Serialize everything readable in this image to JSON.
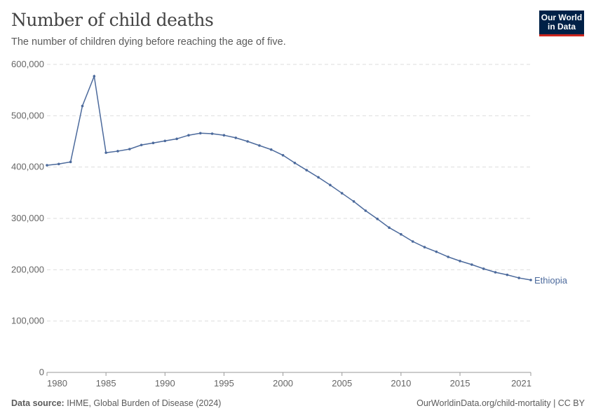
{
  "header": {
    "title": "Number of child deaths",
    "subtitle": "The number of children dying before reaching the age of five.",
    "logo_text": "Our World in Data"
  },
  "footer": {
    "source_label": "Data source:",
    "source": "IHME, Global Burden of Disease (2024)",
    "link": "OurWorldinData.org/child-mortality | CC BY"
  },
  "colors": {
    "series": "#4c6a9c",
    "grid": "#dddddd",
    "logo_bg": "#002147",
    "logo_bar": "#ce261e"
  },
  "chart_data": {
    "type": "line",
    "title": "Number of child deaths",
    "xlabel": "",
    "ylabel": "",
    "xlim": [
      1980,
      2021
    ],
    "ylim": [
      0,
      600000
    ],
    "grid": "horizontal dashed",
    "x_ticks": [
      1980,
      1985,
      1990,
      1995,
      2000,
      2005,
      2010,
      2015,
      2021
    ],
    "y_ticks": [
      0,
      100000,
      200000,
      300000,
      400000,
      500000,
      600000
    ],
    "y_tick_labels": [
      "0",
      "100,000",
      "200,000",
      "300,000",
      "400,000",
      "500,000",
      "600,000"
    ],
    "x": [
      1980,
      1981,
      1982,
      1983,
      1984,
      1985,
      1986,
      1987,
      1988,
      1989,
      1990,
      1991,
      1992,
      1993,
      1994,
      1995,
      1996,
      1997,
      1998,
      1999,
      2000,
      2001,
      2002,
      2003,
      2004,
      2005,
      2006,
      2007,
      2008,
      2009,
      2010,
      2011,
      2012,
      2013,
      2014,
      2015,
      2016,
      2017,
      2018,
      2019,
      2020,
      2021
    ],
    "series": [
      {
        "name": "Ethiopia",
        "values": [
          403500,
          406000,
          410000,
          519000,
          577000,
          428000,
          431000,
          435000,
          443000,
          447000,
          451000,
          455000,
          462000,
          466000,
          465000,
          462000,
          457000,
          450000,
          442000,
          434000,
          423000,
          408000,
          394000,
          380000,
          365000,
          349000,
          333000,
          315000,
          299000,
          282000,
          269000,
          255000,
          244000,
          235000,
          225000,
          217000,
          210000,
          202000,
          195000,
          190000,
          184000,
          180000
        ]
      }
    ]
  }
}
